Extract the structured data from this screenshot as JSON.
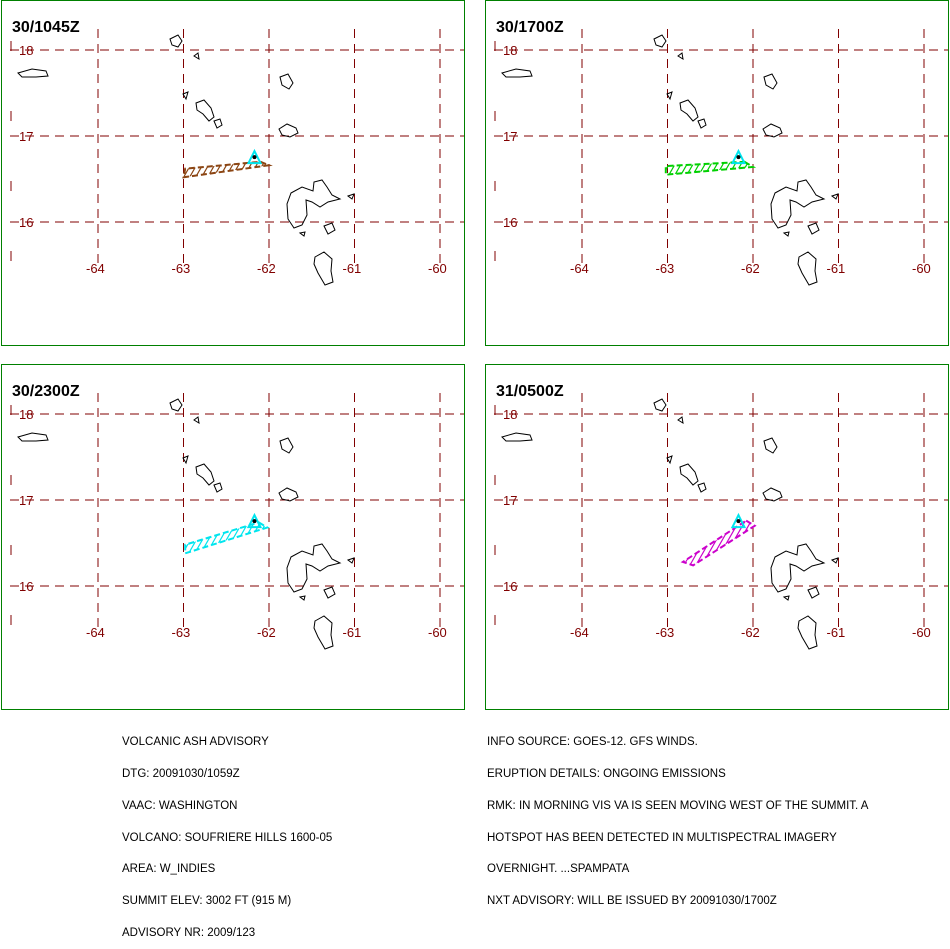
{
  "colors": {
    "frame": "#008000",
    "grid": "#800000",
    "coast": "#000000",
    "vent": "#00e5ee",
    "ash": [
      "#8b4513",
      "#00d000",
      "#00e5ee",
      "#cc00cc"
    ]
  },
  "axes": {
    "lon_labels": [
      "-64",
      "-63",
      "-62",
      "-61",
      "-60"
    ],
    "lat_labels": [
      "18",
      "17",
      "16"
    ]
  },
  "panels": [
    {
      "title": "30/1045Z"
    },
    {
      "title": "30/1700Z"
    },
    {
      "title": "30/2300Z"
    },
    {
      "title": "31/0500Z"
    }
  ],
  "advisory_left": [
    "VOLCANIC ASH ADVISORY",
    "DTG: 20091030/1059Z",
    "VAAC: WASHINGTON",
    "VOLCANO: SOUFRIERE HILLS 1600-05",
    "AREA: W_INDIES",
    "SUMMIT ELEV: 3002 FT (915 M)",
    "ADVISORY NR: 2009/123"
  ],
  "advisory_right": [
    "INFO SOURCE: GOES-12. GFS WINDS.",
    "ERUPTION DETAILS: ONGOING EMISSIONS",
    "RMK: IN MORNING VIS VA IS SEEN MOVING WEST OF THE SUMMIT. A",
    "HOTSPOT HAS BEEN DETECTED IN MULTISPECTRAL IMAGERY",
    "OVERNIGHT. ...SPAMPATA",
    "NXT ADVISORY: WILL BE ISSUED BY 20091030/1700Z"
  ]
}
